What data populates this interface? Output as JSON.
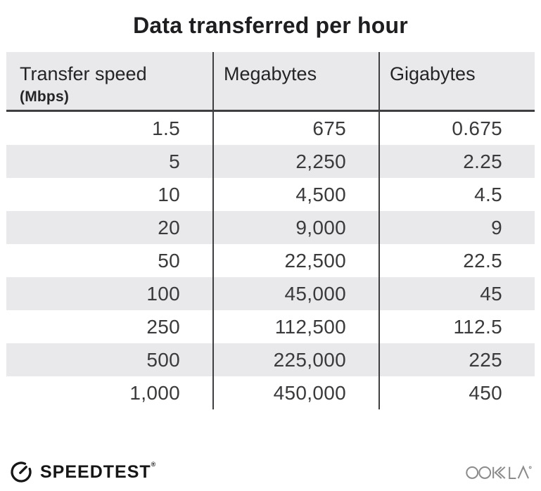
{
  "title": "Data transferred per hour",
  "table": {
    "columns": [
      {
        "label": "Transfer speed",
        "sublabel": "(Mbps)"
      },
      {
        "label": "Megabytes"
      },
      {
        "label": "Gigabytes"
      }
    ],
    "rows": [
      [
        "1.5",
        "675",
        "0.675"
      ],
      [
        "5",
        "2,250",
        "2.25"
      ],
      [
        "10",
        "4,500",
        "4.5"
      ],
      [
        "20",
        "9,000",
        "9"
      ],
      [
        "50",
        "22,500",
        "22.5"
      ],
      [
        "100",
        "45,000",
        "45"
      ],
      [
        "250",
        "112,500",
        "112.5"
      ],
      [
        "500",
        "225,000",
        "225"
      ],
      [
        "1,000",
        "450,000",
        "450"
      ]
    ]
  },
  "chart_data": {
    "type": "table",
    "title": "Data transferred per hour",
    "columns": [
      "Transfer speed (Mbps)",
      "Megabytes",
      "Gigabytes"
    ],
    "rows": [
      [
        1.5,
        675,
        0.675
      ],
      [
        5,
        2250,
        2.25
      ],
      [
        10,
        4500,
        4.5
      ],
      [
        20,
        9000,
        9
      ],
      [
        50,
        22500,
        22.5
      ],
      [
        100,
        45000,
        45
      ],
      [
        250,
        112500,
        112.5
      ],
      [
        500,
        225000,
        225
      ],
      [
        1000,
        450000,
        450
      ]
    ]
  },
  "footer": {
    "speedtest_label": "SPEEDTEST",
    "speedtest_trademark": "®",
    "ookla_label": "OOKLA"
  },
  "colors": {
    "header_bg": "#e9e9ec",
    "stripe_bg": "#e9e9ec",
    "divider": "#3f3f41",
    "title_text": "#1e1e20",
    "data_text": "#3a3a3c",
    "brand_dark": "#161616",
    "ookla_gray": "#8b8b8d"
  }
}
